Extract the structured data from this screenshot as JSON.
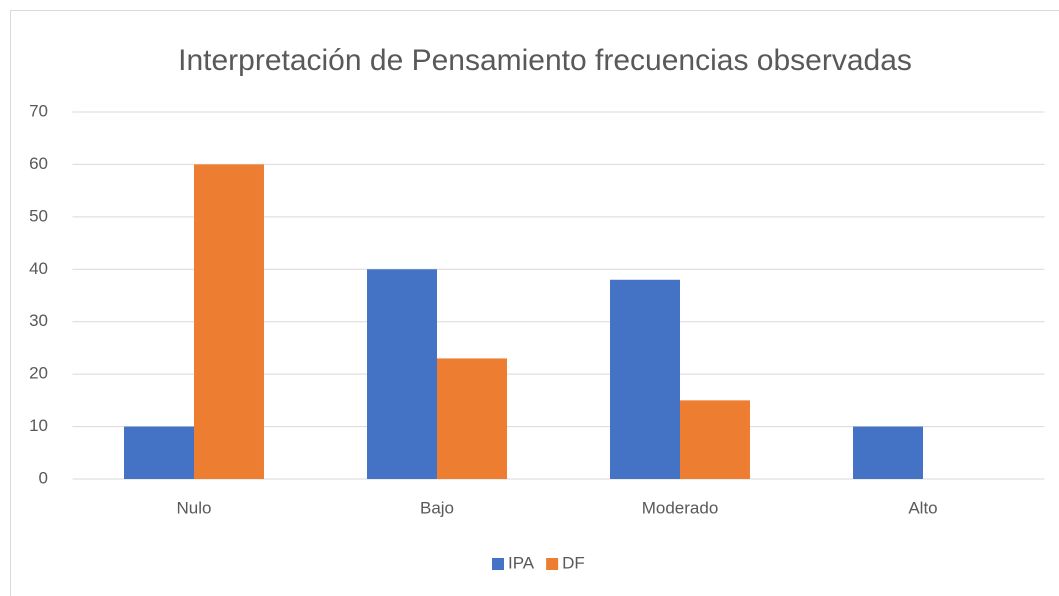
{
  "chart_data": {
    "type": "bar",
    "title": "Interpretación de Pensamiento frecuencias observadas",
    "categories": [
      "Nulo",
      "Bajo",
      "Moderado",
      "Alto"
    ],
    "series": [
      {
        "name": "IPA",
        "color": "#4472c4",
        "values": [
          10,
          40,
          38,
          10
        ]
      },
      {
        "name": "DF",
        "color": "#ed7d31",
        "values": [
          60,
          23,
          15,
          0
        ]
      }
    ],
    "ylim": [
      0,
      70
    ],
    "yticks": [
      0,
      10,
      20,
      30,
      40,
      50,
      60,
      70
    ],
    "grid": true,
    "legend": "bottom"
  }
}
